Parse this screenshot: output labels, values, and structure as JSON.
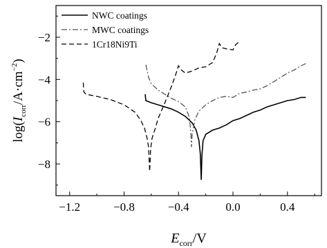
{
  "chart_data": {
    "type": "line",
    "title": "",
    "xlabel": "E_corr/V",
    "ylabel": "log(I_corr/A·cm^-2)",
    "xlabel_parts": {
      "main": "E",
      "sub": "corr",
      "rest": "/V"
    },
    "ylabel_parts": {
      "open": "log(",
      "main": "I",
      "sub": "corr",
      "mid": "/A·cm",
      "sup": "−2",
      "close": ")"
    },
    "xlim": [
      -1.3,
      0.65
    ],
    "ylim": [
      -9.5,
      -0.5
    ],
    "xticks": [
      -1.2,
      -0.8,
      -0.4,
      0.0,
      0.4
    ],
    "xtick_labels": [
      "−1.2",
      "−0.8",
      "−0.4",
      "0.0",
      "0.4"
    ],
    "yticks": [
      -8,
      -6,
      -4,
      -2
    ],
    "ytick_labels": [
      "−8",
      "−6",
      "−4",
      "−2"
    ],
    "grid": false,
    "legend_position": "top-left",
    "series": [
      {
        "name": "NWC coatings",
        "style": "solid",
        "color": "#000000",
        "points": [
          [
            -0.645,
            -4.7
          ],
          [
            -0.64,
            -5.0
          ],
          [
            -0.6,
            -5.1
          ],
          [
            -0.55,
            -5.2
          ],
          [
            -0.5,
            -5.3
          ],
          [
            -0.45,
            -5.4
          ],
          [
            -0.4,
            -5.55
          ],
          [
            -0.35,
            -5.75
          ],
          [
            -0.3,
            -6.05
          ],
          [
            -0.27,
            -6.4
          ],
          [
            -0.25,
            -6.9
          ],
          [
            -0.24,
            -7.5
          ],
          [
            -0.233,
            -8.75
          ],
          [
            -0.228,
            -7.6
          ],
          [
            -0.22,
            -6.9
          ],
          [
            -0.2,
            -6.6
          ],
          [
            -0.15,
            -6.4
          ],
          [
            -0.1,
            -6.3
          ],
          [
            -0.05,
            -6.15
          ],
          [
            0.0,
            -5.95
          ],
          [
            0.05,
            -5.85
          ],
          [
            0.1,
            -5.7
          ],
          [
            0.15,
            -5.55
          ],
          [
            0.2,
            -5.45
          ],
          [
            0.25,
            -5.3
          ],
          [
            0.3,
            -5.2
          ],
          [
            0.35,
            -5.1
          ],
          [
            0.4,
            -5.0
          ],
          [
            0.45,
            -4.95
          ],
          [
            0.5,
            -4.85
          ],
          [
            0.535,
            -4.85
          ]
        ]
      },
      {
        "name": "MWC coatings",
        "style": "dashdot",
        "color": "#555555",
        "points": [
          [
            -0.64,
            -3.3
          ],
          [
            -0.62,
            -3.9
          ],
          [
            -0.6,
            -4.2
          ],
          [
            -0.55,
            -4.5
          ],
          [
            -0.5,
            -4.7
          ],
          [
            -0.45,
            -4.9
          ],
          [
            -0.4,
            -5.05
          ],
          [
            -0.35,
            -5.3
          ],
          [
            -0.32,
            -5.8
          ],
          [
            -0.31,
            -6.5
          ],
          [
            -0.305,
            -7.2
          ],
          [
            -0.3,
            -6.6
          ],
          [
            -0.28,
            -5.9
          ],
          [
            -0.25,
            -5.5
          ],
          [
            -0.2,
            -5.2
          ],
          [
            -0.15,
            -5.0
          ],
          [
            -0.1,
            -4.85
          ],
          [
            -0.05,
            -4.8
          ],
          [
            0.0,
            -4.85
          ],
          [
            0.05,
            -4.65
          ],
          [
            0.1,
            -4.6
          ],
          [
            0.15,
            -4.5
          ],
          [
            0.2,
            -4.45
          ],
          [
            0.25,
            -4.3
          ],
          [
            0.3,
            -4.1
          ],
          [
            0.35,
            -3.9
          ],
          [
            0.4,
            -3.7
          ],
          [
            0.45,
            -3.55
          ],
          [
            0.5,
            -3.35
          ],
          [
            0.535,
            -3.25
          ]
        ]
      },
      {
        "name": "1Cr18Ni9Ti",
        "style": "dashed",
        "color": "#000000",
        "points": [
          [
            -1.1,
            -4.15
          ],
          [
            -1.095,
            -4.6
          ],
          [
            -1.08,
            -4.7
          ],
          [
            -1.0,
            -4.8
          ],
          [
            -0.9,
            -4.95
          ],
          [
            -0.8,
            -5.2
          ],
          [
            -0.72,
            -5.55
          ],
          [
            -0.68,
            -5.9
          ],
          [
            -0.65,
            -6.3
          ],
          [
            -0.63,
            -6.8
          ],
          [
            -0.62,
            -7.2
          ],
          [
            -0.612,
            -8.35
          ],
          [
            -0.605,
            -7.3
          ],
          [
            -0.595,
            -6.8
          ],
          [
            -0.57,
            -6.3
          ],
          [
            -0.55,
            -5.85
          ],
          [
            -0.5,
            -5.1
          ],
          [
            -0.45,
            -4.3
          ],
          [
            -0.42,
            -3.75
          ],
          [
            -0.4,
            -3.35
          ],
          [
            -0.38,
            -3.55
          ],
          [
            -0.35,
            -3.7
          ],
          [
            -0.3,
            -3.6
          ],
          [
            -0.25,
            -3.45
          ],
          [
            -0.2,
            -3.4
          ],
          [
            -0.15,
            -3.2
          ],
          [
            -0.12,
            -2.75
          ],
          [
            -0.1,
            -2.3
          ],
          [
            -0.08,
            -2.5
          ],
          [
            -0.05,
            -2.55
          ],
          [
            0.0,
            -2.6
          ],
          [
            0.02,
            -2.35
          ],
          [
            0.05,
            -2.2
          ]
        ]
      }
    ]
  }
}
